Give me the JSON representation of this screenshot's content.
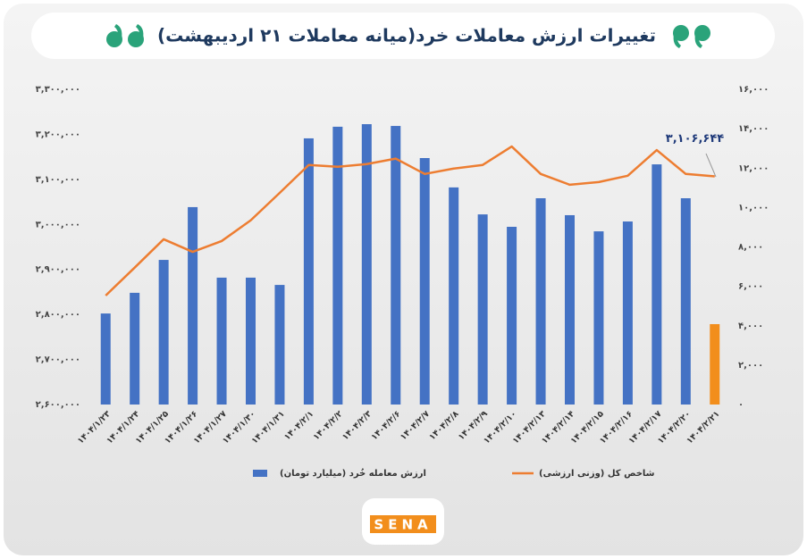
{
  "chart_data": {
    "type": "bar-line",
    "title": "تغییرات ارزش معاملات خرد(میانه معاملات ۲۱ اردیبهشت)",
    "logo": "SENA",
    "categories": [
      "۱۴۰۴/۱/۲۳",
      "۱۴۰۴/۱/۲۴",
      "۱۴۰۴/۱/۲۵",
      "۱۴۰۴/۱/۲۶",
      "۱۴۰۴/۱/۲۷",
      "۱۴۰۴/۱/۳۰",
      "۱۴۰۴/۱/۳۱",
      "۱۴۰۴/۲/۱",
      "۱۴۰۴/۲/۲",
      "۱۴۰۴/۲/۳",
      "۱۴۰۴/۲/۶",
      "۱۴۰۴/۲/۷",
      "۱۴۰۴/۲/۸",
      "۱۴۰۴/۲/۹",
      "۱۴۰۴/۲/۱۰",
      "۱۴۰۴/۲/۱۳",
      "۱۴۰۴/۲/۱۴",
      "۱۴۰۴/۲/۱۵",
      "۱۴۰۴/۲/۱۶",
      "۱۴۰۴/۲/۱۷",
      "۱۴۰۴/۲/۲۰",
      "۱۴۰۴/۲/۲۱"
    ],
    "series": [
      {
        "name": "ارزش معامله خُرد (میلیارد تومان)",
        "type": "bar",
        "axis": "y2",
        "color": "#4472c4",
        "colors": [
          "#4472c4",
          "#4472c4",
          "#4472c4",
          "#4472c4",
          "#4472c4",
          "#4472c4",
          "#4472c4",
          "#4472c4",
          "#4472c4",
          "#4472c4",
          "#4472c4",
          "#4472c4",
          "#4472c4",
          "#4472c4",
          "#4472c4",
          "#4472c4",
          "#4472c4",
          "#4472c4",
          "#4472c4",
          "#4472c4",
          "#4472c4",
          "#f28e1c"
        ],
        "values": [
          4620,
          5670,
          7340,
          10020,
          6440,
          6440,
          6070,
          13510,
          14100,
          14230,
          14140,
          12510,
          11020,
          9650,
          9020,
          10470,
          9610,
          8790,
          9290,
          12190,
          10470,
          4080
        ]
      },
      {
        "name": "شاخص کل (وزنی ارزشی)",
        "type": "line",
        "axis": "y",
        "color": "#ed7d31",
        "values": [
          2842000,
          2904000,
          2967000,
          2939000,
          2963000,
          3009000,
          3070000,
          3132000,
          3128000,
          3134000,
          3146000,
          3112000,
          3124000,
          3132000,
          3173000,
          3112000,
          3088000,
          3094000,
          3108000,
          3165000,
          3112000,
          3106644
        ],
        "value_labels": [
          null,
          null,
          null,
          null,
          null,
          null,
          null,
          null,
          null,
          null,
          null,
          null,
          null,
          null,
          null,
          null,
          null,
          null,
          null,
          null,
          null,
          "۳,۱۰۶,۶۴۴"
        ]
      }
    ],
    "ylim": [
      2600000,
      3300000
    ],
    "yticks": [
      {
        "value": 2600000,
        "label": "۲,۶۰۰,۰۰۰"
      },
      {
        "value": 2700000,
        "label": "۲,۷۰۰,۰۰۰"
      },
      {
        "value": 2800000,
        "label": "۲,۸۰۰,۰۰۰"
      },
      {
        "value": 2900000,
        "label": "۲,۹۰۰,۰۰۰"
      },
      {
        "value": 3000000,
        "label": "۳,۰۰۰,۰۰۰"
      },
      {
        "value": 3100000,
        "label": "۳,۱۰۰,۰۰۰"
      },
      {
        "value": 3200000,
        "label": "۳,۲۰۰,۰۰۰"
      },
      {
        "value": 3300000,
        "label": "۳,۳۰۰,۰۰۰"
      }
    ],
    "y2lim": [
      0,
      16000
    ],
    "y2ticks": [
      {
        "value": 0,
        "label": "۰"
      },
      {
        "value": 2000,
        "label": "۲,۰۰۰"
      },
      {
        "value": 4000,
        "label": "۴,۰۰۰"
      },
      {
        "value": 6000,
        "label": "۶,۰۰۰"
      },
      {
        "value": 8000,
        "label": "۸,۰۰۰"
      },
      {
        "value": 10000,
        "label": "۱۰,۰۰۰"
      },
      {
        "value": 12000,
        "label": "۱۲,۰۰۰"
      },
      {
        "value": 14000,
        "label": "۱۴,۰۰۰"
      },
      {
        "value": 16000,
        "label": "۱۶,۰۰۰"
      }
    ],
    "grid": false
  }
}
